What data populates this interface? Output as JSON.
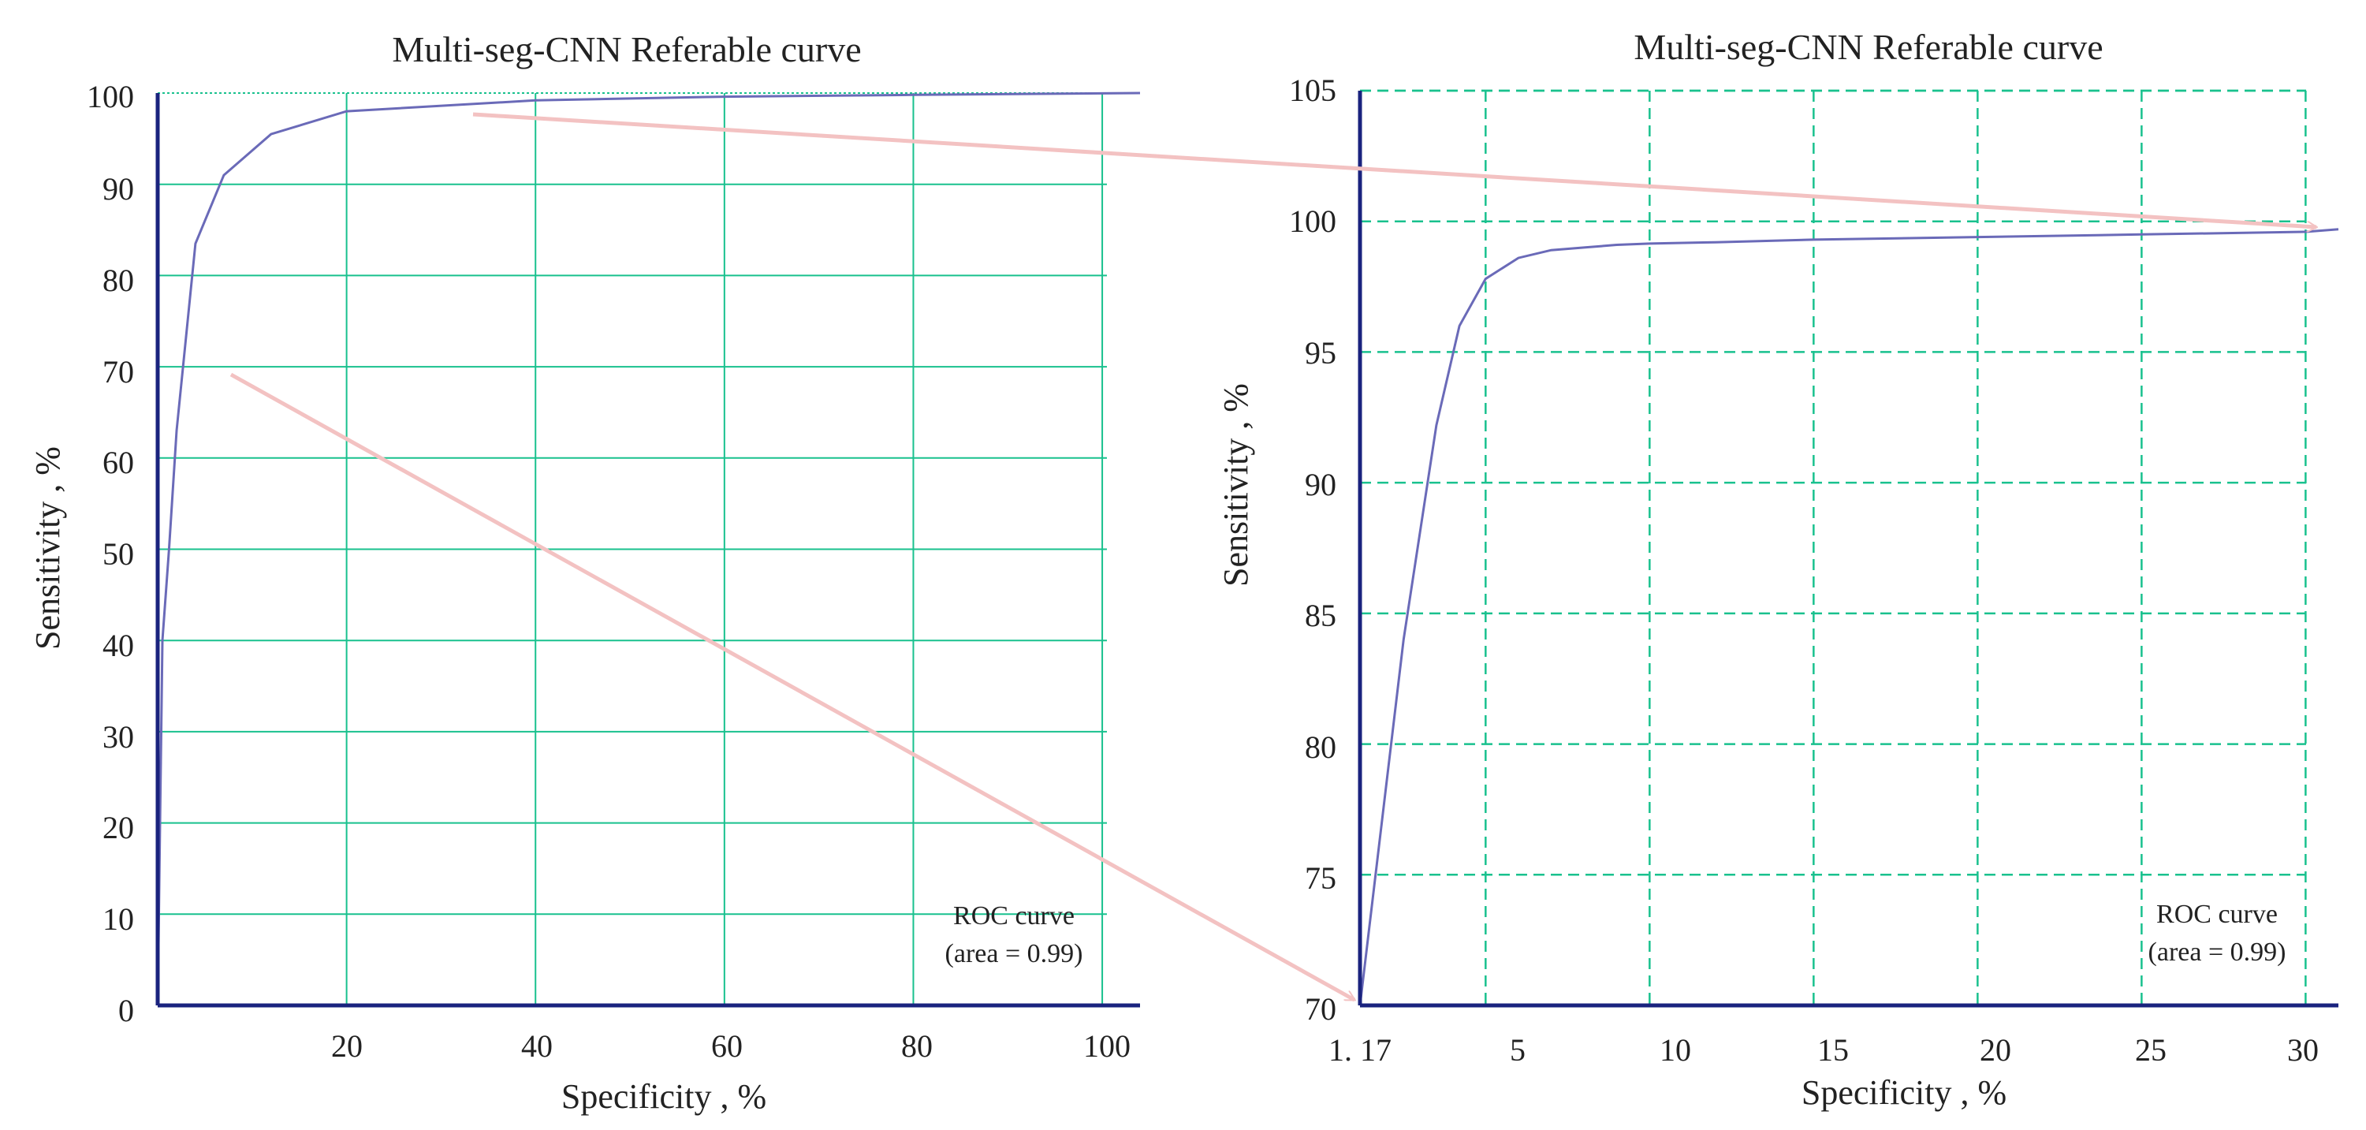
{
  "colors": {
    "curve": "#6a6ab8",
    "axis": "#1a237e",
    "grid": "#19c18e",
    "arrow": "#f3c2c2",
    "text": "#222222"
  },
  "chart_data": [
    {
      "type": "line",
      "title": "Multi-seg-CNN Referable curve",
      "xlabel": "Specificity , %",
      "ylabel": "Sensitivity , %",
      "xlim": [
        0,
        104
      ],
      "ylim": [
        0,
        100
      ],
      "x_ticks": [
        20,
        40,
        60,
        80,
        100
      ],
      "y_ticks": [
        0,
        10,
        20,
        30,
        40,
        50,
        60,
        70,
        80,
        90,
        100
      ],
      "grid": "solid",
      "series": [
        {
          "name": "ROC curve",
          "x": [
            0,
            0.5,
            1.2,
            2,
            4,
            7,
            12,
            20,
            40,
            60,
            80,
            104
          ],
          "y": [
            0,
            40,
            50,
            63,
            83.5,
            91,
            95.5,
            98,
            99.2,
            99.6,
            99.8,
            100
          ]
        }
      ],
      "annotation": [
        "ROC curve",
        "(area = 0.99)"
      ]
    },
    {
      "type": "line",
      "title": "Multi-seg-CNN Referable curve",
      "xlabel": "Specificity , %",
      "ylabel": "Sensitivity , %",
      "xlim": [
        1.17,
        31
      ],
      "ylim": [
        70,
        105
      ],
      "x_ticks": [
        1.17,
        5,
        10,
        15,
        20,
        25,
        30
      ],
      "x_tick_labels": [
        "1. 17",
        "5",
        "10",
        "15",
        "20",
        "25",
        "30"
      ],
      "y_ticks": [
        70,
        75,
        80,
        85,
        90,
        95,
        100,
        105
      ],
      "grid": "dashed",
      "series": [
        {
          "name": "ROC curve",
          "x": [
            1.17,
            2.5,
            3.5,
            4.2,
            5,
            6,
            7,
            8,
            9,
            10,
            12,
            15,
            20,
            25,
            30,
            31
          ],
          "y": [
            70,
            84,
            92.2,
            96,
            97.8,
            98.6,
            98.9,
            99.0,
            99.1,
            99.15,
            99.2,
            99.3,
            99.4,
            99.5,
            99.6,
            99.7
          ]
        }
      ],
      "annotation": [
        "ROC curve",
        "(area = 0.99)"
      ]
    }
  ]
}
